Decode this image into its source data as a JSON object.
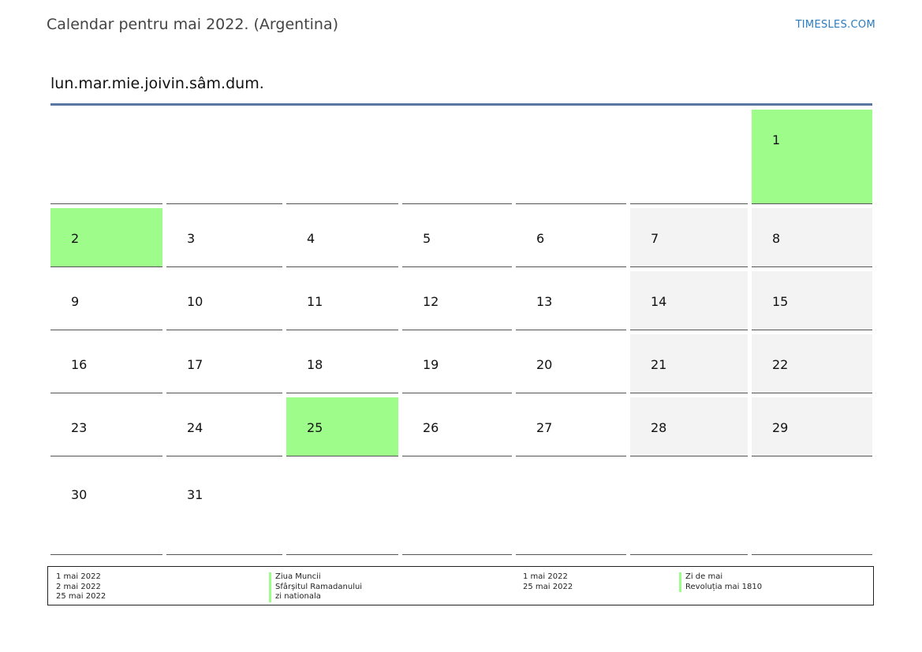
{
  "page": {
    "title": "Calendar pentru mai 2022. (Argentina)",
    "brand": "TIMESLES.COM"
  },
  "calendar": {
    "weekdays": [
      "lun.",
      "mar.",
      "mie.",
      "joi",
      "vin.",
      "sâm.",
      "dum."
    ],
    "colors": {
      "holiday": "#9dfc8a",
      "weekend": "#f3f3f3",
      "header_rule": "#5a75a0"
    },
    "weeks": [
      [
        "",
        "",
        "",
        "",
        "",
        "",
        "1"
      ],
      [
        "2",
        "3",
        "4",
        "5",
        "6",
        "7",
        "8"
      ],
      [
        "9",
        "10",
        "11",
        "12",
        "13",
        "14",
        "15"
      ],
      [
        "16",
        "17",
        "18",
        "19",
        "20",
        "21",
        "22"
      ],
      [
        "23",
        "24",
        "25",
        "26",
        "27",
        "28",
        "29"
      ],
      [
        "30",
        "31",
        "",
        "",
        "",
        "",
        ""
      ]
    ],
    "holiday_days": [
      "1",
      "2",
      "25"
    ]
  },
  "legend": {
    "left_dates": [
      "1 mai 2022",
      "2 mai 2022",
      "25 mai 2022"
    ],
    "left_names": [
      "Ziua Muncii",
      "Sfârșitul Ramadanului",
      "zi nationala"
    ],
    "right_dates": [
      "1 mai 2022",
      "25 mai 2022"
    ],
    "right_names": [
      "Zi de mai",
      "Revoluția mai 1810"
    ]
  }
}
